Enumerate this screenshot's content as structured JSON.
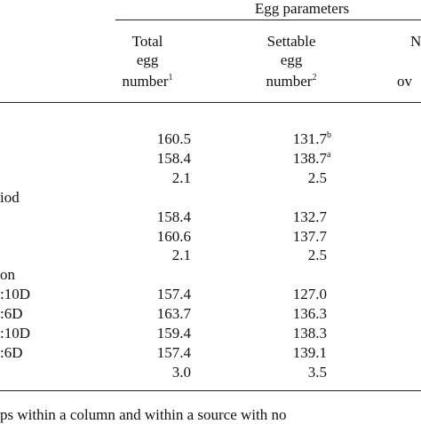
{
  "header": {
    "group": "Egg parameters",
    "columns": [
      {
        "lines": [
          "Total",
          "egg",
          "number"
        ],
        "note": "1"
      },
      {
        "lines": [
          "Settable",
          "egg",
          "number"
        ],
        "note": "2"
      },
      {
        "lines": [
          "N",
          "ov"
        ]
      }
    ]
  },
  "rows": [
    {
      "cells": [
        "160.5",
        {
          "text": "131.7",
          "sup": "b"
        }
      ]
    },
    {
      "cells": [
        "158.4",
        {
          "text": "138.7",
          "sup": "a"
        }
      ]
    },
    {
      "cells": [
        "2.1",
        "2.5"
      ]
    },
    {
      "label": "iod"
    },
    {
      "cells": [
        "158.4",
        "132.7"
      ]
    },
    {
      "cells": [
        "160.6",
        "137.7"
      ]
    },
    {
      "cells": [
        "2.1",
        "2.5"
      ]
    },
    {
      "label": "on"
    },
    {
      "label": ":10D",
      "cells": [
        "157.4",
        "127.0"
      ]
    },
    {
      "label": ":6D",
      "cells": [
        "163.7",
        "136.3"
      ]
    },
    {
      "label": ":10D",
      "cells": [
        "159.4",
        "138.3"
      ]
    },
    {
      "label": ":6D",
      "cells": [
        "157.4",
        "139.1"
      ]
    },
    {
      "cells": [
        "3.0",
        "3.5"
      ]
    }
  ],
  "footnote": "ps within a column and within a source with no"
}
